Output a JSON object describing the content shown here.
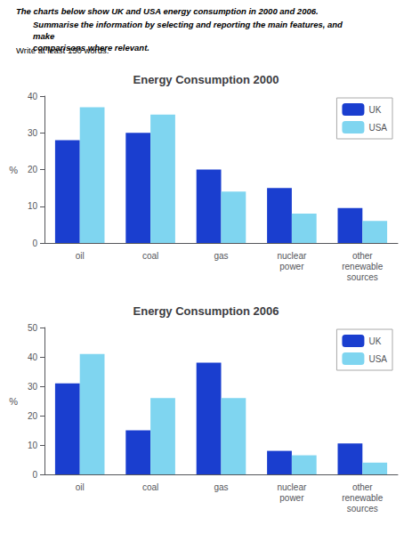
{
  "chart_data": [
    {
      "type": "bar",
      "title": "Energy Consumption 2000",
      "annotations": [
        "The charts below show UK and USA energy consumption in 2000 and 2006.",
        "Summarise the information by selecting and reporting the main features, and make\ncomparisons where relevant.",
        "Write at least 150 words."
      ],
      "categories": [
        "oil",
        "coal",
        "gas",
        "nuclear\npower",
        "other\nrenewable\nsources"
      ],
      "series": [
        {
          "name": "UK",
          "color": "#1a3ecf",
          "values": [
            28,
            30,
            20,
            15,
            9.5
          ]
        },
        {
          "name": "USA",
          "color": "#7fd5f0",
          "values": [
            37,
            35,
            14,
            8,
            6
          ]
        }
      ],
      "ylabel": "%",
      "ylim": [
        0,
        40
      ],
      "yticks": [
        0,
        10,
        20,
        30,
        40
      ],
      "grid": false,
      "legend": "upper right"
    },
    {
      "type": "bar",
      "title": "Energy Consumption 2006",
      "categories": [
        "oil",
        "coal",
        "gas",
        "nuclear\npower",
        "other\nrenewable\nsources"
      ],
      "series": [
        {
          "name": "UK",
          "color": "#1a3ecf",
          "values": [
            31,
            15,
            38,
            8,
            10.5
          ]
        },
        {
          "name": "USA",
          "color": "#7fd5f0",
          "values": [
            41,
            26,
            26,
            6.5,
            4
          ]
        }
      ],
      "ylabel": "%",
      "ylim": [
        0,
        50
      ],
      "yticks": [
        0,
        10,
        20,
        30,
        40,
        50
      ],
      "grid": false,
      "legend": "upper right"
    }
  ]
}
